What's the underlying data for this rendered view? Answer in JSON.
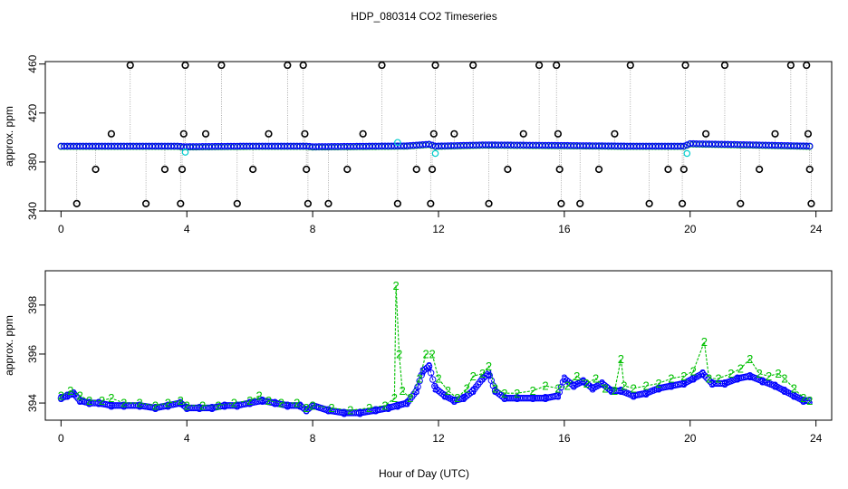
{
  "title": "HDP_080314  CO2 Timeseries",
  "xlabel": "Hour of Day (UTC)",
  "chart_data": [
    {
      "type": "scatter",
      "ylabel": "approx. ppm",
      "xlim": [
        -0.5,
        24.5
      ],
      "ylim": [
        340,
        462
      ],
      "xticks": [
        0,
        4,
        8,
        12,
        16,
        20,
        24
      ],
      "yticks": [
        340,
        380,
        420,
        460
      ],
      "colors": {
        "raw": "#000000",
        "blue": "#0000ff",
        "cyan": "#00cccc",
        "green": "#00c000",
        "drop": "#8c8c8c"
      },
      "baseline": [
        [
          0.0,
          393.0
        ],
        [
          3.7,
          393.0
        ],
        [
          3.9,
          392.5
        ],
        [
          6.0,
          393.0
        ],
        [
          7.8,
          393.0
        ],
        [
          8.0,
          392.5
        ],
        [
          11.0,
          393.2
        ],
        [
          11.7,
          394.5
        ],
        [
          11.9,
          393.0
        ],
        [
          13.5,
          394.0
        ],
        [
          16.0,
          393.5
        ],
        [
          18.0,
          393.0
        ],
        [
          19.8,
          393.0
        ],
        [
          20.0,
          395.0
        ],
        [
          22.0,
          394.0
        ],
        [
          23.8,
          393.0
        ]
      ],
      "outliers": [
        [
          0.5,
          346
        ],
        [
          1.1,
          374
        ],
        [
          1.6,
          403
        ],
        [
          2.2,
          459
        ],
        [
          2.7,
          346
        ],
        [
          3.3,
          374
        ],
        [
          3.8,
          346
        ],
        [
          3.85,
          374
        ],
        [
          3.9,
          403
        ],
        [
          3.95,
          459
        ],
        [
          4.6,
          403
        ],
        [
          5.1,
          459
        ],
        [
          5.6,
          346
        ],
        [
          6.1,
          374
        ],
        [
          6.6,
          403
        ],
        [
          7.2,
          459
        ],
        [
          7.7,
          459
        ],
        [
          7.75,
          403
        ],
        [
          7.8,
          374
        ],
        [
          7.85,
          346
        ],
        [
          8.5,
          346
        ],
        [
          9.1,
          374
        ],
        [
          9.6,
          403
        ],
        [
          10.2,
          459
        ],
        [
          10.7,
          346
        ],
        [
          11.3,
          374
        ],
        [
          11.75,
          346
        ],
        [
          11.8,
          374
        ],
        [
          11.85,
          403
        ],
        [
          11.9,
          459
        ],
        [
          12.5,
          403
        ],
        [
          13.1,
          459
        ],
        [
          13.6,
          346
        ],
        [
          14.2,
          374
        ],
        [
          14.7,
          403
        ],
        [
          15.2,
          459
        ],
        [
          15.75,
          459
        ],
        [
          15.8,
          403
        ],
        [
          15.85,
          374
        ],
        [
          15.9,
          346
        ],
        [
          16.5,
          346
        ],
        [
          17.1,
          374
        ],
        [
          17.6,
          403
        ],
        [
          18.1,
          459
        ],
        [
          18.7,
          346
        ],
        [
          19.3,
          374
        ],
        [
          19.75,
          346
        ],
        [
          19.8,
          374
        ],
        [
          19.85,
          459
        ],
        [
          20.5,
          403
        ],
        [
          21.1,
          459
        ],
        [
          21.6,
          346
        ],
        [
          22.2,
          374
        ],
        [
          22.7,
          403
        ],
        [
          23.2,
          459
        ],
        [
          23.7,
          459
        ],
        [
          23.75,
          403
        ],
        [
          23.8,
          374
        ],
        [
          23.85,
          346
        ]
      ],
      "cyan_points": [
        [
          3.95,
          388
        ],
        [
          10.7,
          396
        ],
        [
          11.9,
          387
        ],
        [
          19.9,
          387
        ]
      ]
    },
    {
      "type": "line",
      "ylabel": "approx. ppm",
      "xlim": [
        -0.5,
        24.5
      ],
      "ylim": [
        393.3,
        399.4
      ],
      "xticks": [
        0,
        4,
        8,
        12,
        16,
        20,
        24
      ],
      "yticks": [
        394,
        396,
        398
      ],
      "series": [
        {
          "marker": "3",
          "color": "#0000ff",
          "points": [
            [
              0.0,
              394.2
            ],
            [
              0.2,
              394.3
            ],
            [
              0.4,
              394.4
            ],
            [
              0.6,
              394.1
            ],
            [
              0.9,
              394.0
            ],
            [
              1.2,
              394.0
            ],
            [
              1.6,
              393.9
            ],
            [
              2.0,
              393.9
            ],
            [
              2.5,
              393.9
            ],
            [
              3.0,
              393.8
            ],
            [
              3.4,
              393.9
            ],
            [
              3.8,
              394.0
            ],
            [
              4.0,
              393.8
            ],
            [
              4.4,
              393.8
            ],
            [
              4.8,
              393.8
            ],
            [
              5.2,
              393.9
            ],
            [
              5.6,
              393.9
            ],
            [
              6.0,
              394.0
            ],
            [
              6.4,
              394.1
            ],
            [
              6.8,
              394.0
            ],
            [
              7.2,
              393.9
            ],
            [
              7.6,
              393.9
            ],
            [
              7.8,
              393.7
            ],
            [
              8.0,
              393.9
            ],
            [
              8.5,
              393.7
            ],
            [
              9.0,
              393.6
            ],
            [
              9.5,
              393.6
            ],
            [
              10.0,
              393.7
            ],
            [
              10.4,
              393.8
            ],
            [
              10.7,
              393.9
            ],
            [
              11.0,
              394.0
            ],
            [
              11.3,
              394.5
            ],
            [
              11.5,
              395.3
            ],
            [
              11.7,
              395.5
            ],
            [
              11.9,
              394.6
            ],
            [
              12.2,
              394.3
            ],
            [
              12.5,
              394.1
            ],
            [
              12.8,
              394.2
            ],
            [
              13.1,
              394.5
            ],
            [
              13.4,
              395.0
            ],
            [
              13.6,
              395.2
            ],
            [
              13.8,
              394.5
            ],
            [
              14.1,
              394.2
            ],
            [
              14.5,
              394.2
            ],
            [
              15.0,
              394.2
            ],
            [
              15.4,
              394.2
            ],
            [
              15.8,
              394.3
            ],
            [
              16.0,
              395.0
            ],
            [
              16.3,
              394.7
            ],
            [
              16.6,
              394.9
            ],
            [
              16.9,
              394.6
            ],
            [
              17.2,
              394.8
            ],
            [
              17.5,
              394.5
            ],
            [
              17.8,
              394.5
            ],
            [
              18.2,
              394.3
            ],
            [
              18.6,
              394.4
            ],
            [
              19.0,
              394.6
            ],
            [
              19.4,
              394.7
            ],
            [
              19.8,
              394.8
            ],
            [
              20.1,
              395.0
            ],
            [
              20.4,
              395.2
            ],
            [
              20.7,
              394.8
            ],
            [
              21.1,
              394.8
            ],
            [
              21.5,
              395.0
            ],
            [
              21.9,
              395.1
            ],
            [
              22.3,
              394.9
            ],
            [
              22.7,
              394.7
            ],
            [
              23.0,
              394.5
            ],
            [
              23.3,
              394.3
            ],
            [
              23.6,
              394.1
            ],
            [
              23.8,
              394.1
            ]
          ]
        },
        {
          "marker": "2",
          "color": "#00c000",
          "points": [
            [
              0.0,
              394.3
            ],
            [
              0.3,
              394.5
            ],
            [
              0.6,
              394.3
            ],
            [
              0.9,
              394.1
            ],
            [
              1.3,
              394.1
            ],
            [
              1.6,
              394.2
            ],
            [
              2.0,
              394.0
            ],
            [
              2.5,
              394.0
            ],
            [
              3.0,
              393.9
            ],
            [
              3.4,
              394.0
            ],
            [
              3.8,
              394.1
            ],
            [
              4.0,
              393.9
            ],
            [
              4.5,
              393.9
            ],
            [
              5.0,
              393.9
            ],
            [
              5.5,
              394.0
            ],
            [
              6.0,
              394.1
            ],
            [
              6.3,
              394.3
            ],
            [
              6.6,
              394.1
            ],
            [
              7.0,
              394.0
            ],
            [
              7.5,
              394.0
            ],
            [
              7.8,
              393.8
            ],
            [
              8.0,
              393.9
            ],
            [
              8.6,
              393.8
            ],
            [
              9.2,
              393.7
            ],
            [
              9.8,
              393.8
            ],
            [
              10.3,
              393.9
            ],
            [
              10.6,
              394.2
            ],
            [
              10.65,
              398.8
            ],
            [
              10.75,
              396.0
            ],
            [
              10.85,
              394.5
            ],
            [
              11.1,
              394.2
            ],
            [
              11.4,
              395.0
            ],
            [
              11.6,
              396.0
            ],
            [
              11.8,
              396.0
            ],
            [
              12.0,
              395.0
            ],
            [
              12.3,
              394.5
            ],
            [
              12.6,
              394.2
            ],
            [
              12.9,
              394.6
            ],
            [
              13.1,
              395.1
            ],
            [
              13.4,
              395.2
            ],
            [
              13.6,
              395.5
            ],
            [
              13.8,
              394.6
            ],
            [
              14.1,
              394.4
            ],
            [
              14.5,
              394.4
            ],
            [
              15.0,
              394.5
            ],
            [
              15.4,
              394.7
            ],
            [
              15.8,
              394.6
            ],
            [
              16.1,
              394.7
            ],
            [
              16.4,
              395.1
            ],
            [
              16.7,
              394.8
            ],
            [
              17.0,
              395.0
            ],
            [
              17.3,
              394.6
            ],
            [
              17.6,
              394.5
            ],
            [
              17.8,
              395.8
            ],
            [
              17.9,
              394.7
            ],
            [
              18.2,
              394.6
            ],
            [
              18.6,
              394.7
            ],
            [
              19.0,
              394.8
            ],
            [
              19.4,
              395.0
            ],
            [
              19.8,
              395.1
            ],
            [
              20.1,
              395.3
            ],
            [
              20.45,
              396.5
            ],
            [
              20.6,
              395.0
            ],
            [
              20.9,
              395.0
            ],
            [
              21.3,
              395.2
            ],
            [
              21.6,
              395.4
            ],
            [
              21.9,
              395.8
            ],
            [
              22.2,
              395.2
            ],
            [
              22.5,
              395.1
            ],
            [
              22.8,
              395.2
            ],
            [
              23.0,
              395.0
            ],
            [
              23.3,
              394.6
            ],
            [
              23.6,
              394.2
            ],
            [
              23.8,
              394.1
            ]
          ]
        }
      ]
    }
  ]
}
